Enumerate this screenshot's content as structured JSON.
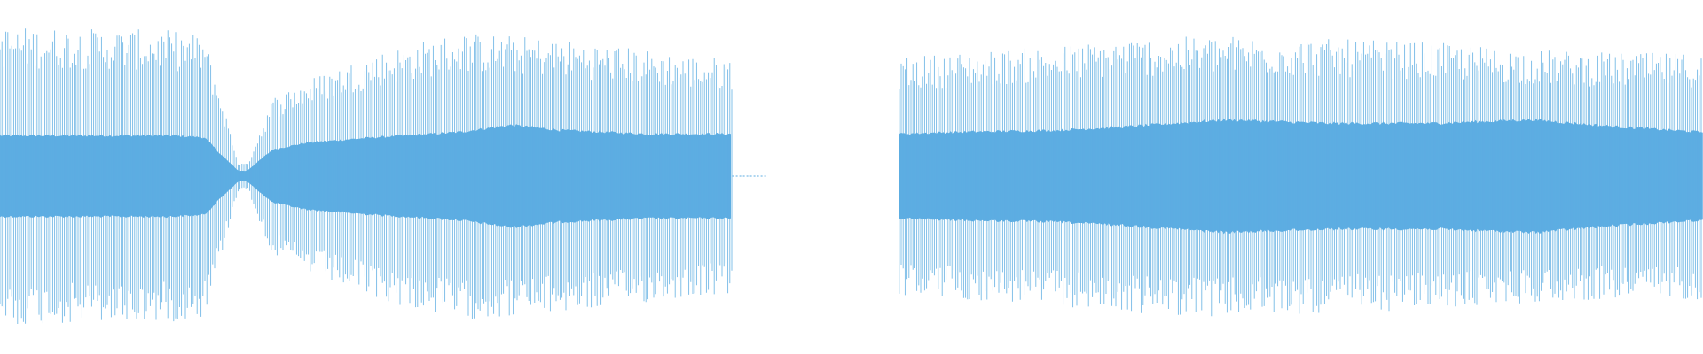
{
  "chart_data": {
    "type": "area",
    "title": "",
    "xlabel": "",
    "ylabel": "",
    "grid": false,
    "legend": "none",
    "xlim": [
      0,
      1
    ],
    "ylim": [
      -1,
      1
    ],
    "color": "#5DADE2",
    "segments": [
      {
        "name": "",
        "x_start": 0.0,
        "x_end": 0.43,
        "envelope": [
          {
            "x": 0.0,
            "outer": 0.85,
            "inner": 0.23
          },
          {
            "x": 0.05,
            "outer": 0.84,
            "inner": 0.23
          },
          {
            "x": 0.1,
            "outer": 0.83,
            "inner": 0.23
          },
          {
            "x": 0.12,
            "outer": 0.8,
            "inner": 0.22
          },
          {
            "x": 0.13,
            "outer": 0.45,
            "inner": 0.12
          },
          {
            "x": 0.14,
            "outer": 0.08,
            "inner": 0.03
          },
          {
            "x": 0.145,
            "outer": 0.07,
            "inner": 0.03
          },
          {
            "x": 0.15,
            "outer": 0.2,
            "inner": 0.07
          },
          {
            "x": 0.16,
            "outer": 0.45,
            "inner": 0.15
          },
          {
            "x": 0.18,
            "outer": 0.55,
            "inner": 0.19
          },
          {
            "x": 0.22,
            "outer": 0.7,
            "inner": 0.22
          },
          {
            "x": 0.27,
            "outer": 0.82,
            "inner": 0.25
          },
          {
            "x": 0.3,
            "outer": 0.8,
            "inner": 0.29
          },
          {
            "x": 0.33,
            "outer": 0.78,
            "inner": 0.26
          },
          {
            "x": 0.38,
            "outer": 0.72,
            "inner": 0.24
          },
          {
            "x": 0.41,
            "outer": 0.68,
            "inner": 0.24
          },
          {
            "x": 0.43,
            "outer": 0.68,
            "inner": 0.24
          }
        ]
      },
      {
        "name": "",
        "x_start": 0.528,
        "x_end": 1.0,
        "envelope": [
          {
            "x": 0.528,
            "outer": 0.68,
            "inner": 0.24
          },
          {
            "x": 0.56,
            "outer": 0.7,
            "inner": 0.25
          },
          {
            "x": 0.62,
            "outer": 0.74,
            "inner": 0.26
          },
          {
            "x": 0.66,
            "outer": 0.78,
            "inner": 0.28
          },
          {
            "x": 0.72,
            "outer": 0.8,
            "inner": 0.32
          },
          {
            "x": 0.78,
            "outer": 0.78,
            "inner": 0.3
          },
          {
            "x": 0.84,
            "outer": 0.76,
            "inner": 0.3
          },
          {
            "x": 0.9,
            "outer": 0.72,
            "inner": 0.32
          },
          {
            "x": 0.95,
            "outer": 0.7,
            "inner": 0.28
          },
          {
            "x": 1.0,
            "outer": 0.7,
            "inner": 0.25
          }
        ]
      }
    ],
    "silence": {
      "x_start": 0.43,
      "x_end": 0.45
    }
  }
}
